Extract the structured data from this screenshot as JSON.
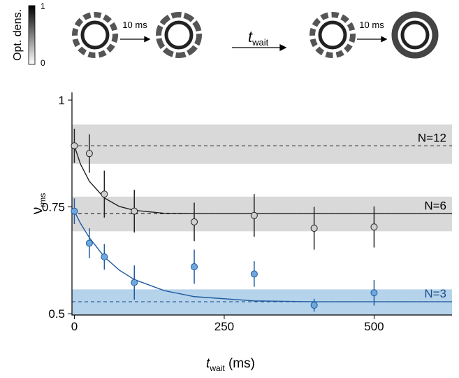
{
  "header": {
    "colorbar_label": "Opt. dens.",
    "colorbar_max": "1",
    "colorbar_min": "0",
    "step1": "10 ms",
    "wait_symbol": "t",
    "wait_sub": "wait",
    "step2": "10 ms"
  },
  "chart_data": {
    "type": "scatter",
    "xlabel": "t",
    "xlabel_sub": "wait",
    "xlabel_unit": " (ms)",
    "ylabel": "ν",
    "ylabel_sub": "rms",
    "xlim": [
      -4,
      630
    ],
    "ylim": [
      0.497,
      1.018
    ],
    "xticks": [
      0,
      250,
      500
    ],
    "yticks": [
      0.5,
      0.75,
      1
    ],
    "levels": [
      {
        "label": "N=12",
        "value": 0.893,
        "band": [
          0.851,
          0.943
        ],
        "color": "#d9d9d9",
        "line_color": "#333333",
        "label_color": "#000000"
      },
      {
        "label": "N=6",
        "value": 0.734,
        "band": [
          0.693,
          0.774
        ],
        "color": "#d9d9d9",
        "line_color": "#333333",
        "label_color": "#000000"
      },
      {
        "label": "N=3",
        "value": 0.528,
        "band": [
          0.497,
          0.557
        ],
        "color": "#b5d3ea",
        "line_color": "#1f4e8c",
        "label_color": "#1f4e8c"
      }
    ],
    "series": [
      {
        "color": "#222222",
        "fill": "#d0d0d0",
        "x": [
          0,
          25,
          50,
          100,
          200,
          300,
          400,
          500
        ],
        "values": [
          0.893,
          0.875,
          0.78,
          0.74,
          0.715,
          0.73,
          0.7,
          0.703
        ],
        "errors": [
          0.04,
          0.045,
          0.055,
          0.05,
          0.045,
          0.05,
          0.05,
          0.048
        ],
        "fit_x": [
          0,
          10,
          25,
          50,
          75,
          100,
          150,
          200,
          300,
          400,
          500,
          630
        ],
        "fit_values": [
          0.893,
          0.851,
          0.81,
          0.771,
          0.751,
          0.742,
          0.735,
          0.734,
          0.734,
          0.734,
          0.734,
          0.734
        ]
      },
      {
        "color": "#1f5aa0",
        "fill": "#6fa8dc",
        "x": [
          0,
          25,
          50,
          100,
          200,
          300,
          400,
          500
        ],
        "values": [
          0.74,
          0.665,
          0.633,
          0.573,
          0.61,
          0.593,
          0.52,
          0.549
        ],
        "errors": [
          0.03,
          0.035,
          0.03,
          0.04,
          0.04,
          0.03,
          0.015,
          0.03
        ],
        "fit_x": [
          0,
          10,
          25,
          50,
          75,
          100,
          150,
          200,
          300,
          400,
          500,
          630
        ],
        "fit_values": [
          0.74,
          0.712,
          0.678,
          0.633,
          0.602,
          0.58,
          0.554,
          0.54,
          0.53,
          0.528,
          0.528,
          0.528
        ]
      }
    ]
  }
}
